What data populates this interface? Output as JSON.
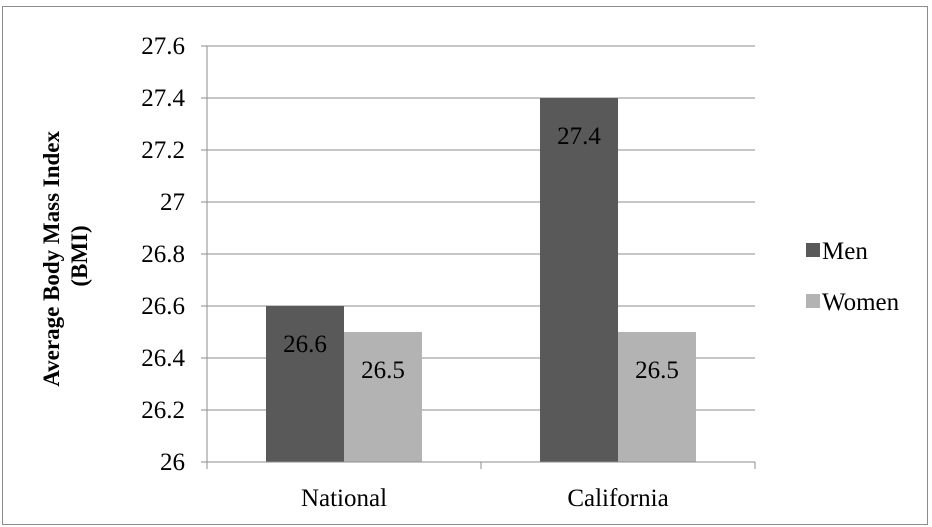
{
  "chart_data": {
    "type": "bar",
    "title": "",
    "xlabel": "",
    "ylabel_lines": [
      "Average Body Mass Index",
      "(BMI)"
    ],
    "categories": [
      "National",
      "California"
    ],
    "series": [
      {
        "name": "Men",
        "values": [
          26.6,
          27.4
        ],
        "color": "#595959",
        "data_labels": [
          "26.6",
          "27.4"
        ]
      },
      {
        "name": "Women",
        "values": [
          26.5,
          26.5
        ],
        "color": "#b3b3b3",
        "data_labels": [
          "26.5",
          "26.5"
        ]
      }
    ],
    "ylim": [
      26,
      27.6
    ],
    "yticks": [
      26,
      26.2,
      26.4,
      26.6,
      26.8,
      27,
      27.2,
      27.4,
      27.6
    ],
    "ytick_labels": [
      "26",
      "26.2",
      "26.4",
      "26.6",
      "26.8",
      "27",
      "27.2",
      "27.4",
      "27.6"
    ],
    "grid": true,
    "legend_position": "right"
  }
}
